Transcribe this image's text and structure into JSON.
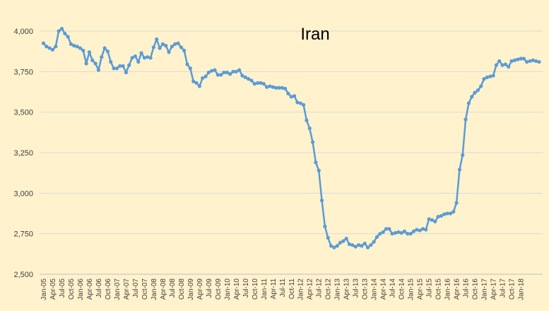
{
  "chart_data": {
    "type": "line",
    "title": "Iran",
    "xlabel": "",
    "ylabel": "",
    "ylim": [
      2500,
      4000
    ],
    "yticks": [
      2500,
      2750,
      3000,
      3250,
      3500,
      3750,
      4000
    ],
    "ytick_labels": [
      "2,500",
      "2,750",
      "3,000",
      "3,250",
      "3,500",
      "3,750",
      "4,000"
    ],
    "grid": true,
    "legend": "none",
    "line_color": "#5b9bd5",
    "x_tick_labels": [
      "Jan-05",
      "Apr-05",
      "Jul-05",
      "Oct-05",
      "Jan-06",
      "Apr-06",
      "Jul-06",
      "Oct-06",
      "Jan-07",
      "Apr-07",
      "Jul-07",
      "Oct-07",
      "Jan-08",
      "Apr-08",
      "Jul-08",
      "Oct-08",
      "Jan-09",
      "Apr-09",
      "Jul-09",
      "Oct-09",
      "Jan-10",
      "Apr-10",
      "Jul-10",
      "Oct-10",
      "Jan-11",
      "Apr-11",
      "Jul-11",
      "Oct-11",
      "Jan-12",
      "Apr-12",
      "Jul-12",
      "Oct-12",
      "Jan-13",
      "Apr-13",
      "Jul-13",
      "Oct-13",
      "Jan-14",
      "Apr-14",
      "Jul-14",
      "Oct-14",
      "Jan-15",
      "Apr-15",
      "Jul-15",
      "Oct-15",
      "Jan-16",
      "Apr-16",
      "Jul-16",
      "Oct-16",
      "Jan-17",
      "Apr-17",
      "Jul-17",
      "Oct-17",
      "Jan-18"
    ],
    "x_start": "Jan-05",
    "x_step": "1 month",
    "values": [
      3925,
      3905,
      3895,
      3885,
      3905,
      4000,
      4015,
      3985,
      3965,
      3920,
      3910,
      3905,
      3895,
      3880,
      3800,
      3870,
      3820,
      3800,
      3760,
      3840,
      3895,
      3875,
      3810,
      3770,
      3770,
      3785,
      3785,
      3745,
      3790,
      3835,
      3845,
      3810,
      3865,
      3835,
      3840,
      3835,
      3900,
      3950,
      3895,
      3920,
      3910,
      3870,
      3905,
      3920,
      3925,
      3900,
      3880,
      3795,
      3770,
      3690,
      3680,
      3660,
      3710,
      3720,
      3745,
      3755,
      3760,
      3730,
      3730,
      3745,
      3745,
      3735,
      3750,
      3750,
      3760,
      3725,
      3715,
      3705,
      3695,
      3675,
      3680,
      3680,
      3675,
      3655,
      3660,
      3655,
      3650,
      3650,
      3650,
      3645,
      3615,
      3595,
      3600,
      3560,
      3555,
      3545,
      3450,
      3400,
      3315,
      3190,
      3140,
      2955,
      2795,
      2725,
      2675,
      2665,
      2675,
      2695,
      2705,
      2720,
      2685,
      2680,
      2670,
      2680,
      2675,
      2690,
      2665,
      2680,
      2700,
      2730,
      2750,
      2760,
      2780,
      2780,
      2750,
      2755,
      2760,
      2755,
      2765,
      2750,
      2750,
      2765,
      2775,
      2770,
      2780,
      2775,
      2840,
      2835,
      2825,
      2855,
      2860,
      2870,
      2875,
      2875,
      2885,
      2940,
      3145,
      3235,
      3455,
      3555,
      3595,
      3620,
      3635,
      3660,
      3705,
      3715,
      3720,
      3725,
      3790,
      3815,
      3790,
      3795,
      3780,
      3815,
      3820,
      3825,
      3830,
      3830,
      3810,
      3815,
      3820,
      3815,
      3810
    ]
  }
}
